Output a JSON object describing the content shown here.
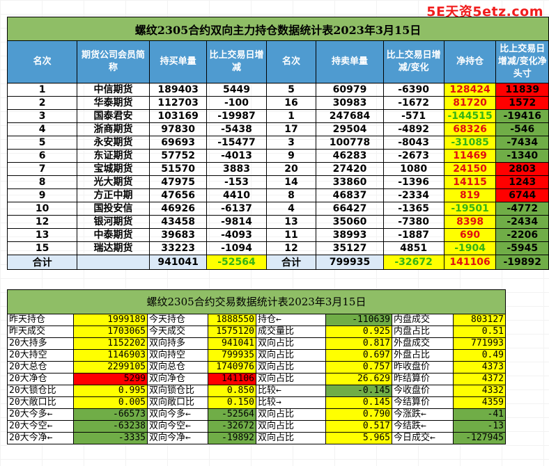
{
  "watermark": "5E天资5etz.com",
  "table1": {
    "title": "螺纹2305合约双向主力持仓数据统计表2023年3月15日",
    "headers": [
      "名次",
      "期货公司会员简称",
      "持买单量",
      "比上交易日增减",
      "名次",
      "持卖单量",
      "比上交易日增减/变化",
      "净持仓",
      "比上交易日增减/变化净头寸"
    ],
    "rows": [
      {
        "rank1": "1",
        "name": "中信期货",
        "buy": "189403",
        "buy_chg": "5449",
        "rank2": "5",
        "sell": "60979",
        "sell_chg": "-6390",
        "net": "128424",
        "net_chg": "11839",
        "net_style": "y rt",
        "netchg_style": "r"
      },
      {
        "rank1": "2",
        "name": "华泰期货",
        "buy": "112703",
        "buy_chg": "-100",
        "rank2": "16",
        "sell": "30983",
        "sell_chg": "-1672",
        "net": "81720",
        "net_chg": "1572",
        "net_style": "y rt",
        "netchg_style": "r"
      },
      {
        "rank1": "3",
        "name": "国泰君安",
        "buy": "103169",
        "buy_chg": "-19987",
        "rank2": "1",
        "sell": "247684",
        "sell_chg": "-571",
        "net": "-144515",
        "net_chg": "-19416",
        "net_style": "y gt",
        "netchg_style": "g"
      },
      {
        "rank1": "4",
        "name": "浙商期货",
        "buy": "97830",
        "buy_chg": "-5438",
        "rank2": "17",
        "sell": "29504",
        "sell_chg": "-4892",
        "net": "68326",
        "net_chg": "-546",
        "net_style": "y rt",
        "netchg_style": "g"
      },
      {
        "rank1": "5",
        "name": "永安期货",
        "buy": "69693",
        "buy_chg": "-15477",
        "rank2": "3",
        "sell": "100778",
        "sell_chg": "-8043",
        "net": "-31085",
        "net_chg": "-7434",
        "net_style": "y gt",
        "netchg_style": "g"
      },
      {
        "rank1": "6",
        "name": "东证期货",
        "buy": "57752",
        "buy_chg": "-4013",
        "rank2": "9",
        "sell": "46283",
        "sell_chg": "-2673",
        "net": "11469",
        "net_chg": "-1340",
        "net_style": "y rt",
        "netchg_style": "g"
      },
      {
        "rank1": "7",
        "name": "宝城期货",
        "buy": "51570",
        "buy_chg": "3883",
        "rank2": "20",
        "sell": "27420",
        "sell_chg": "1080",
        "net": "24150",
        "net_chg": "2803",
        "net_style": "y rt",
        "netchg_style": "r"
      },
      {
        "rank1": "8",
        "name": "光大期货",
        "buy": "47975",
        "buy_chg": "-153",
        "rank2": "14",
        "sell": "33860",
        "sell_chg": "-1396",
        "net": "14115",
        "net_chg": "1243",
        "net_style": "y rt",
        "netchg_style": "r"
      },
      {
        "rank1": "9",
        "name": "方正中期",
        "buy": "47656",
        "buy_chg": "4410",
        "rank2": "8",
        "sell": "46837",
        "sell_chg": "-2334",
        "net": "819",
        "net_chg": "6744",
        "net_style": "y rt",
        "netchg_style": "r"
      },
      {
        "rank1": "10",
        "name": "国投安信",
        "buy": "46926",
        "buy_chg": "-6137",
        "rank2": "4",
        "sell": "66427",
        "sell_chg": "-1365",
        "net": "-19501",
        "net_chg": "-4772",
        "net_style": "y gt",
        "netchg_style": "g"
      },
      {
        "rank1": "12",
        "name": "银河期货",
        "buy": "43458",
        "buy_chg": "-9814",
        "rank2": "13",
        "sell": "35060",
        "sell_chg": "-7380",
        "net": "8398",
        "net_chg": "-2434",
        "net_style": "y rt",
        "netchg_style": "g"
      },
      {
        "rank1": "13",
        "name": "中泰期货",
        "buy": "39683",
        "buy_chg": "-4093",
        "rank2": "11",
        "sell": "38993",
        "sell_chg": "-1887",
        "net": "690",
        "net_chg": "-2206",
        "net_style": "y rt",
        "netchg_style": "g"
      },
      {
        "rank1": "15",
        "name": "瑞达期货",
        "buy": "33223",
        "buy_chg": "-1094",
        "rank2": "12",
        "sell": "35127",
        "sell_chg": "4851",
        "net": "-1904",
        "net_chg": "-5945",
        "net_style": "y gt",
        "netchg_style": "g"
      }
    ],
    "summary": {
      "label1": "合计",
      "buy": "941041",
      "buy_chg": "-52564",
      "label2": "合计",
      "sell": "799935",
      "sell_chg": "-32672",
      "net": "141106",
      "net_chg": "-19892"
    }
  },
  "table2": {
    "title": "螺纹2305合约交易数据统计表2023年3月15日",
    "rows": [
      {
        "l1": "昨天持仓",
        "v1": "1999189",
        "c1": "y",
        "l2": "今天持仓",
        "v2": "1888550",
        "c2": "y",
        "l3": "持仓←",
        "v3": "-110639",
        "c3": "g",
        "l4": "内盘成交",
        "v4": "803127",
        "c4": "y"
      },
      {
        "l1": "昨天成交",
        "v1": "1703065",
        "c1": "y",
        "l2": "今天成交",
        "v2": "1575120",
        "c2": "y",
        "l3": "成交量比",
        "v3": "0.925",
        "c3": "y",
        "l4": "内盘占比",
        "v4": "0.51",
        "c4": "y"
      },
      {
        "l1": "20大持多",
        "v1": "1152202",
        "c1": "y",
        "l2": "双向持多",
        "v2": "941041",
        "c2": "y",
        "l3": "双向占比",
        "v3": "0.817",
        "c3": "y",
        "l4": "外盘成交",
        "v4": "771993",
        "c4": "y"
      },
      {
        "l1": "20大持空",
        "v1": "1146903",
        "c1": "y",
        "l2": "双向持空",
        "v2": "799935",
        "c2": "y",
        "l3": "双向占比",
        "v3": "0.697",
        "c3": "y",
        "l4": "外盘占比",
        "v4": "0.49",
        "c4": "y"
      },
      {
        "l1": "20大总仓",
        "v1": "2299105",
        "c1": "y",
        "l2": "双向总仓",
        "v2": "1740976",
        "c2": "y",
        "l3": "双向占比",
        "v3": "0.757",
        "c3": "y",
        "l4": "昨收盘价",
        "v4": "4373",
        "c4": "y"
      },
      {
        "l1": "20大净仓",
        "v1": "5299",
        "c1": "r",
        "l2": "双向净仓",
        "v2": "141106",
        "c2": "r",
        "l3": "双向占比",
        "v3": "26.629",
        "c3": "y",
        "l4": "昨结算价",
        "v4": "4372",
        "c4": "y"
      },
      {
        "l1": "20大锁仓比",
        "v1": "0.995",
        "c1": "y",
        "l2": "双向锁仓比",
        "v2": "0.850",
        "c2": "y",
        "l3": "比较←",
        "v3": "-0.145",
        "c3": "g",
        "l4": "今收盘价",
        "v4": "4332",
        "c4": "y"
      },
      {
        "l1": "20大敞口比",
        "v1": "0.005",
        "c1": "y",
        "l2": "双向敞口比",
        "v2": "0.150",
        "c2": "y",
        "l3": "比较→",
        "v3": "0.145",
        "c3": "y",
        "l4": "今结算价",
        "v4": "4359",
        "c4": "y"
      },
      {
        "l1": "20大今多←",
        "v1": "-66573",
        "c1": "g",
        "l2": "双向今多←",
        "v2": "-52564",
        "c2": "g",
        "l3": "双向占比",
        "v3": "0.790",
        "c3": "y",
        "l4": "今涨跌←",
        "v4": "-41",
        "c4": "g"
      },
      {
        "l1": "20大今空←",
        "v1": "-63238",
        "c1": "g",
        "l2": "双向今空←",
        "v2": "-32672",
        "c2": "g",
        "l3": "双向占比",
        "v3": "0.517",
        "c3": "y",
        "l4": "今结跌←",
        "v4": "-13",
        "c4": "g"
      },
      {
        "l1": "20大今净←",
        "v1": "-3335",
        "c1": "g",
        "l2": "双向今净←",
        "v2": "-19892",
        "c2": "g",
        "l3": "双向占比",
        "v3": "5.965",
        "c3": "y",
        "l4": "今日成交←",
        "v4": "-127945",
        "c4": "g"
      }
    ]
  }
}
